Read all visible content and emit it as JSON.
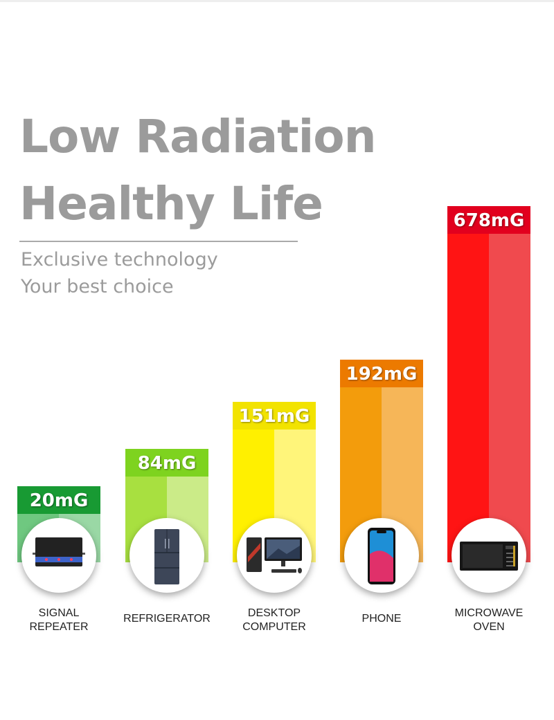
{
  "headline": {
    "line1": "Low Radiation",
    "line2": "Healthy Life"
  },
  "tagline": {
    "line1": "Exclusive technology",
    "line2": "Your best choice"
  },
  "chart_data": {
    "type": "bar",
    "unit": "mG",
    "categories": [
      {
        "line1": "SIGNAL",
        "line2": "REPEATER"
      },
      {
        "line1": "REFRIGERATOR",
        "line2": ""
      },
      {
        "line1": "DESKTOP",
        "line2": "COMPUTER"
      },
      {
        "line1": "PHONE",
        "line2": ""
      },
      {
        "line1": "MICROWAVE",
        "line2": "OVEN"
      }
    ],
    "values": [
      20,
      84,
      151,
      192,
      678
    ],
    "labels": [
      "20mG",
      "84mG",
      "151mG",
      "192mG",
      "678mG"
    ],
    "colors": [
      {
        "dark": "#189a33",
        "mid": "#6fc880",
        "light": "#9ad8a5"
      },
      {
        "dark": "#7ed31f",
        "mid": "#a8e040",
        "light": "#cbeb88"
      },
      {
        "dark": "#f2e300",
        "mid": "#fff000",
        "light": "#fff57a"
      },
      {
        "dark": "#ec7a00",
        "mid": "#f39c0c",
        "light": "#f6b658"
      },
      {
        "dark": "#e2001e",
        "mid": "#ff1414",
        "light": "#f04a4e"
      }
    ],
    "icons": [
      "signal-repeater-icon",
      "refrigerator-icon",
      "desktop-computer-icon",
      "phone-icon",
      "microwave-oven-icon"
    ]
  }
}
